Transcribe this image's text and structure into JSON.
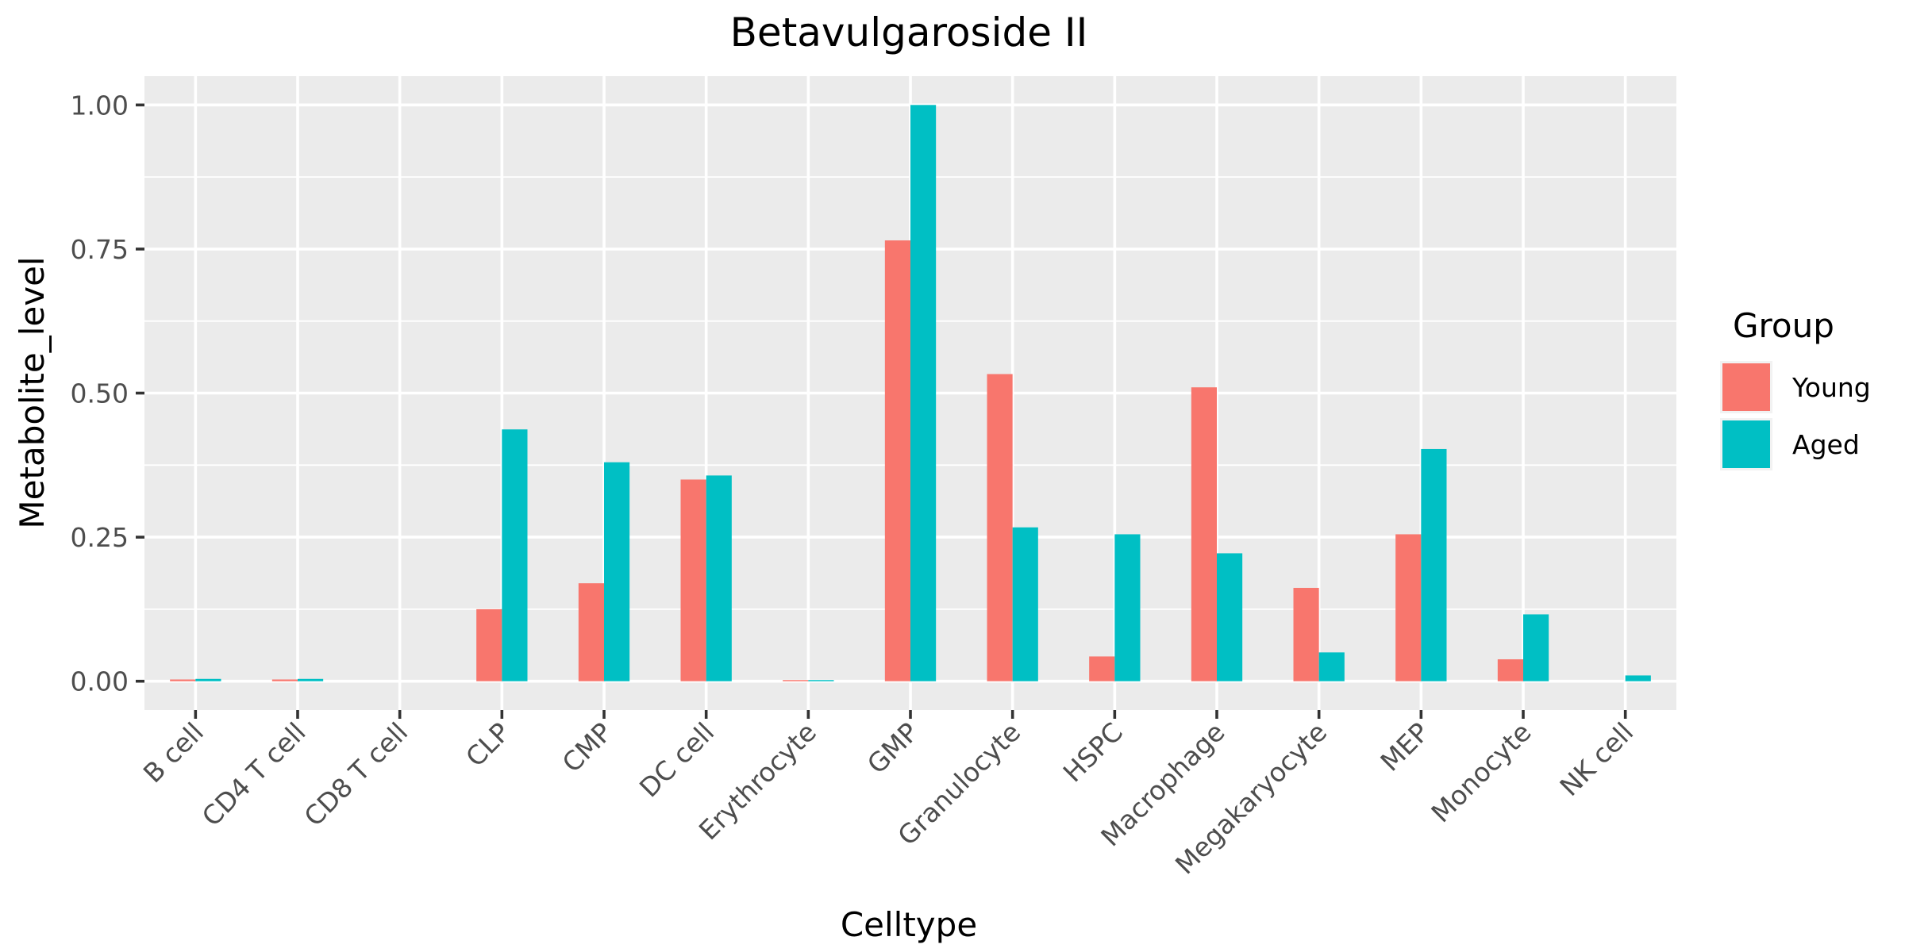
{
  "chart_data": {
    "type": "bar",
    "title": "Betavulgaroside II",
    "xlabel": "Celltype",
    "ylabel": "Metabolite_level",
    "categories": [
      "B cell",
      "CD4 T cell",
      "CD8 T cell",
      "CLP",
      "CMP",
      "DC cell",
      "Erythrocyte",
      "GMP",
      "Granulocyte",
      "HSPC",
      "Macrophage",
      "Megakaryocyte",
      "MEP",
      "Monocyte",
      "NK cell"
    ],
    "series": [
      {
        "name": "Young",
        "color": "#F8766D",
        "values": [
          0.003,
          0.003,
          0,
          0.125,
          0.17,
          0.35,
          0.002,
          0.765,
          0.533,
          0.043,
          0.51,
          0.162,
          0.255,
          0.038,
          0
        ]
      },
      {
        "name": "Aged",
        "color": "#00BFC4",
        "values": [
          0.004,
          0.004,
          0,
          0.437,
          0.38,
          0.357,
          0.002,
          1.0,
          0.267,
          0.255,
          0.222,
          0.05,
          0.403,
          0.116,
          0.01
        ]
      }
    ],
    "ylim": [
      -0.05,
      1.05
    ],
    "yticks": [
      0,
      0.25,
      0.5,
      0.75,
      1.0
    ],
    "ytick_labels": [
      "0.00",
      "0.25",
      "0.50",
      "0.75",
      "1.00"
    ],
    "legend": {
      "title": "Group",
      "position": "right"
    },
    "grid": true,
    "panel_background": "#EBEBEB"
  }
}
